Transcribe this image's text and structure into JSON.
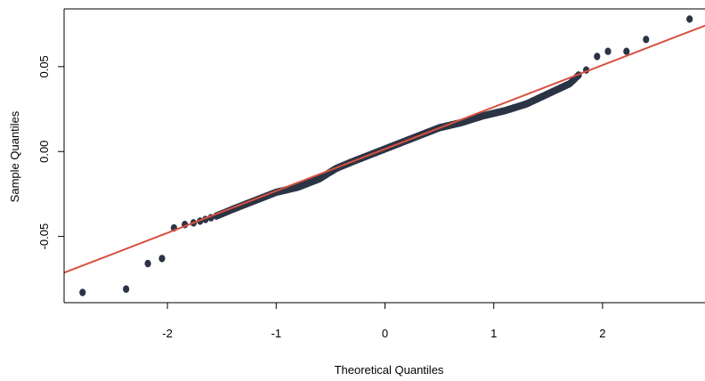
{
  "chart_data": {
    "type": "scatter",
    "title": "",
    "xlabel": "Theoretical Quantiles",
    "ylabel": "Sample Quantiles",
    "xlim": [
      -2.95,
      2.95
    ],
    "ylim": [
      -0.089,
      0.084
    ],
    "x_ticks": [
      -2,
      -1,
      0,
      1,
      2
    ],
    "x_tick_labels": [
      "-2",
      "-1",
      "0",
      "1",
      "2"
    ],
    "y_ticks": [
      -0.05,
      0.0,
      0.05
    ],
    "y_tick_labels": [
      "-0.05",
      "0.00",
      "0.05"
    ],
    "reference_line": {
      "intercept": 0.0015,
      "slope": 0.0247,
      "color": "#d9503f"
    },
    "point_color": "#2b3445",
    "tail_points": [
      [
        -2.78,
        -0.083
      ],
      [
        -2.38,
        -0.081
      ],
      [
        -2.18,
        -0.066
      ],
      [
        -2.05,
        -0.063
      ],
      [
        -1.94,
        -0.045
      ],
      [
        -1.84,
        -0.043
      ],
      [
        -1.76,
        -0.042
      ],
      [
        -1.7,
        -0.041
      ],
      [
        -1.65,
        -0.04
      ],
      [
        -1.6,
        -0.039
      ],
      [
        -1.55,
        -0.038
      ],
      [
        1.78,
        0.045
      ],
      [
        1.85,
        0.048
      ],
      [
        1.95,
        0.056
      ],
      [
        2.05,
        0.059
      ],
      [
        2.22,
        0.059
      ],
      [
        2.4,
        0.066
      ],
      [
        2.8,
        0.078
      ]
    ],
    "body_curve": [
      [
        -1.55,
        -0.038
      ],
      [
        -1.4,
        -0.034
      ],
      [
        -1.2,
        -0.029
      ],
      [
        -1.0,
        -0.024
      ],
      [
        -0.8,
        -0.021
      ],
      [
        -0.6,
        -0.016
      ],
      [
        -0.45,
        -0.01
      ],
      [
        -0.3,
        -0.006
      ],
      [
        -0.1,
        -0.001
      ],
      [
        0.1,
        0.004
      ],
      [
        0.3,
        0.009
      ],
      [
        0.5,
        0.014
      ],
      [
        0.7,
        0.017
      ],
      [
        0.9,
        0.021
      ],
      [
        1.1,
        0.024
      ],
      [
        1.3,
        0.028
      ],
      [
        1.5,
        0.034
      ],
      [
        1.7,
        0.04
      ],
      [
        1.78,
        0.045
      ]
    ],
    "body_point_count": 230
  }
}
